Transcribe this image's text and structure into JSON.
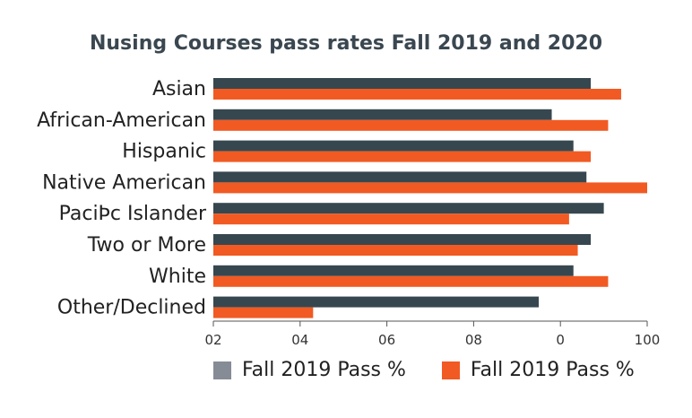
{
  "chart_data": {
    "type": "bar",
    "orientation": "horizontal",
    "title": "Nusing Courses pass rates Fall 2019 and 2020",
    "categories": [
      "Asian",
      "African-American",
      "Hispanic",
      "Native American",
      "PaciÞc Islander",
      "Two or More",
      "White",
      "Other/Declined"
    ],
    "x_tick_labels": [
      "02",
      "04",
      "06",
      "08",
      "0",
      "100"
    ],
    "xlim": [
      0,
      100
    ],
    "series": [
      {
        "name": "Fall 2019 Pass %",
        "color": "#37474f",
        "values": [
          87,
          78,
          83,
          86,
          90,
          87,
          83,
          75
        ]
      },
      {
        "name": "Fall 2019 Pass %",
        "color": "#f15a22",
        "values": [
          94,
          91,
          87,
          100,
          82,
          84,
          91,
          23
        ]
      }
    ],
    "legend": {
      "position": "bottom",
      "swatch_colors": [
        "#868c96",
        "#f15a22"
      ]
    },
    "grid": false
  }
}
